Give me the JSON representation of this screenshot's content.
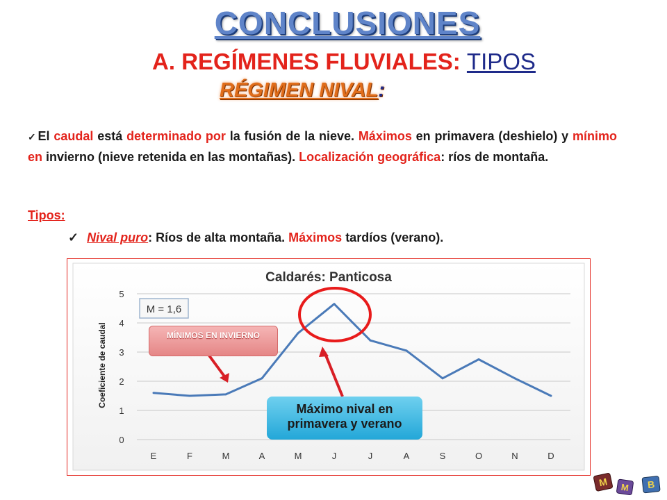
{
  "header": {
    "title": "CONCLUSIONES",
    "subtitle_prefix": "A. REGÍMENES FLUVIALES:",
    "subtitle_tipos": "TIPOS",
    "regimen": "RÉGIMEN NIVAL",
    "regimen_colon": ":"
  },
  "paragraph": {
    "checkmark": "✓",
    "p1": "El ",
    "p2": "caudal",
    "p3": " está ",
    "p4": "determinado por",
    "p5": " la fusión de la nieve. ",
    "p6": "Máximos",
    "p7": " en primavera (deshielo) y ",
    "p8": "mínimo en",
    "p9": " invierno (nieve retenida en las montañas). ",
    "p10": "Localización geográfica",
    "p11": ": ríos de montaña."
  },
  "tipos": {
    "label": "Tipos:",
    "checkmark": "✓",
    "item_name": "Nival puro",
    "item_t1": ": Ríos de alta montaña. ",
    "item_t2": "Máximos",
    "item_t3": " tardíos (verano)."
  },
  "chart_data": {
    "type": "line",
    "title": "Caldarés: Panticosa",
    "xlabel": "",
    "ylabel": "Coeficiente de caudal",
    "categories": [
      "E",
      "F",
      "M",
      "A",
      "M",
      "J",
      "J",
      "A",
      "S",
      "O",
      "N",
      "D"
    ],
    "series": [
      {
        "values": [
          1.6,
          1.5,
          1.55,
          2.1,
          3.65,
          4.65,
          3.4,
          3.05,
          2.1,
          2.75,
          2.1,
          1.5
        ]
      }
    ],
    "ylim": [
      0,
      5
    ],
    "yticks": [
      "0",
      "1",
      "2",
      "3",
      "4",
      "5"
    ],
    "grid": true,
    "line_color": "#4a7ab8",
    "annotation_box": "M = 1,6"
  },
  "callouts": {
    "min_label": "MÍNIMOS EN INVIERNO",
    "max_label": "Máximo nival en primavera y verano"
  },
  "logo": {
    "letters": [
      "M",
      "M",
      "B"
    ]
  }
}
